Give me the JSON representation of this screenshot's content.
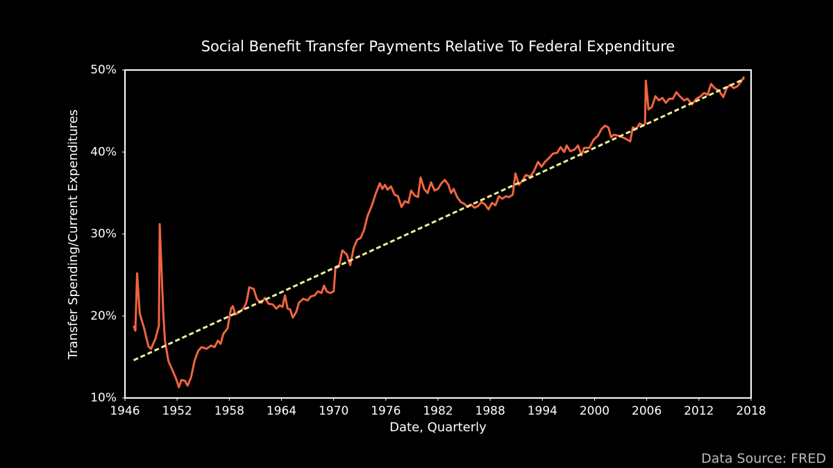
{
  "chart_data": {
    "type": "line",
    "title": "Social Benefit Transfer Payments Relative To Federal Expenditure",
    "x_label": "Date, Quarterly",
    "y_label": "Transfer Spending/Current Expenditures",
    "source": "Data Source: FRED",
    "color": "#f26440",
    "x": [
      1947.0,
      1947.2,
      1947.4,
      1947.7,
      1948.2,
      1948.7,
      1949.0,
      1949.5,
      1949.9,
      1950.0,
      1950.4,
      1950.6,
      1951.0,
      1951.5,
      1951.9,
      1952.2,
      1952.5,
      1952.9,
      1953.2,
      1953.6,
      1954.0,
      1954.4,
      1954.8,
      1955.4,
      1955.9,
      1956.3,
      1956.7,
      1957.0,
      1957.3,
      1957.8,
      1958.2,
      1958.4,
      1958.7,
      1959.2,
      1959.7,
      1960.0,
      1960.3,
      1960.8,
      1961.2,
      1961.7,
      1962.1,
      1962.5,
      1963.0,
      1963.4,
      1963.8,
      1964.1,
      1964.4,
      1964.7,
      1965.0,
      1965.3,
      1965.7,
      1966.0,
      1966.5,
      1967.0,
      1967.4,
      1967.8,
      1968.2,
      1968.6,
      1968.9,
      1969.2,
      1969.6,
      1970.0,
      1970.2,
      1970.6,
      1971.0,
      1971.5,
      1971.9,
      1972.3,
      1972.7,
      1973.1,
      1973.5,
      1973.9,
      1974.4,
      1974.8,
      1975.3,
      1975.6,
      1975.9,
      1976.2,
      1976.6,
      1977.0,
      1977.4,
      1977.8,
      1978.2,
      1978.6,
      1978.9,
      1979.3,
      1979.7,
      1980.0,
      1980.4,
      1980.8,
      1981.2,
      1981.6,
      1982.0,
      1982.4,
      1982.8,
      1983.2,
      1983.5,
      1983.8,
      1984.2,
      1984.6,
      1985.0,
      1985.4,
      1985.8,
      1986.2,
      1986.6,
      1987.0,
      1987.4,
      1987.8,
      1988.2,
      1988.6,
      1989.0,
      1989.4,
      1989.8,
      1990.2,
      1990.6,
      1990.9,
      1991.3,
      1991.7,
      1992.1,
      1992.6,
      1993.0,
      1993.5,
      1993.9,
      1994.3,
      1994.8,
      1995.2,
      1995.7,
      1996.1,
      1996.5,
      1996.8,
      1997.2,
      1997.7,
      1998.1,
      1998.5,
      1998.8,
      1999.4,
      1999.9,
      2000.4,
      2000.8,
      2001.2,
      2001.6,
      2001.9,
      2002.2,
      2002.7,
      2003.2,
      2003.6,
      2004.1,
      2004.4,
      2004.8,
      2005.2,
      2005.6,
      2005.8,
      2005.9,
      2006.2,
      2006.6,
      2007.0,
      2007.4,
      2007.8,
      2008.2,
      2008.6,
      2009.0,
      2009.4,
      2009.8,
      2010.3,
      2010.7,
      2011.2,
      2011.7,
      2012.2,
      2012.6,
      2013.0,
      2013.4,
      2013.8,
      2014.3,
      2014.8,
      2015.2,
      2015.6,
      2016.0,
      2016.4,
      2016.8,
      2017.2
    ],
    "values": [
      18.8,
      18.2,
      25.2,
      20.3,
      18.5,
      16.3,
      16.0,
      17.2,
      18.8,
      31.2,
      20.5,
      17.0,
      14.5,
      13.3,
      12.3,
      11.3,
      12.2,
      12.1,
      11.5,
      12.5,
      14.5,
      15.7,
      16.2,
      16.0,
      16.4,
      16.2,
      17.0,
      16.6,
      17.8,
      18.5,
      20.9,
      21.2,
      20.2,
      20.5,
      21.0,
      21.8,
      23.5,
      23.3,
      22.0,
      21.6,
      22.2,
      21.5,
      21.4,
      20.9,
      21.3,
      21.1,
      22.5,
      20.9,
      20.8,
      19.8,
      20.5,
      21.6,
      22.1,
      21.9,
      22.4,
      22.5,
      23.0,
      22.8,
      23.7,
      23.0,
      22.8,
      23.0,
      25.8,
      26.0,
      28.0,
      27.5,
      26.2,
      28.3,
      29.3,
      29.5,
      30.5,
      32.2,
      33.5,
      34.8,
      36.2,
      35.5,
      36.0,
      35.4,
      35.8,
      34.8,
      34.6,
      33.3,
      34.0,
      33.8,
      35.3,
      34.7,
      34.5,
      36.9,
      35.5,
      35.0,
      36.3,
      35.3,
      35.5,
      36.2,
      36.6,
      36.0,
      35.0,
      35.5,
      34.5,
      33.9,
      33.7,
      33.3,
      33.6,
      33.2,
      33.4,
      33.9,
      33.6,
      33.0,
      33.8,
      33.5,
      34.6,
      34.3,
      34.6,
      34.5,
      34.8,
      37.4,
      36.0,
      36.5,
      37.2,
      37.0,
      37.6,
      38.8,
      38.2,
      38.8,
      39.3,
      39.8,
      39.9,
      40.6,
      40.0,
      40.8,
      40.1,
      40.3,
      40.8,
      39.6,
      40.5,
      40.5,
      41.5,
      42.0,
      42.8,
      43.2,
      43.0,
      41.8,
      42.1,
      42.0,
      41.8,
      41.6,
      41.3,
      43.0,
      42.8,
      43.5,
      43.2,
      43.5,
      48.7,
      45.2,
      45.5,
      46.8,
      46.3,
      46.6,
      46.0,
      46.5,
      46.5,
      47.3,
      46.8,
      46.3,
      46.5,
      45.8,
      46.5,
      46.8,
      47.2,
      47.0,
      48.3,
      47.8,
      47.5,
      46.7,
      47.8,
      48.2,
      47.8,
      48.0,
      48.5,
      49.2
    ],
    "trend": {
      "x": [
        1947.0,
        2017.2
      ],
      "values": [
        14.6,
        48.9
      ],
      "color": "#f4eea0",
      "dashed": true
    },
    "xlim": [
      1946,
      2018
    ],
    "xticks": [
      1946,
      1952,
      1958,
      1964,
      1970,
      1976,
      1982,
      1988,
      1994,
      2000,
      2006,
      2012,
      2018
    ],
    "ylim": [
      10,
      50
    ],
    "yticks": [
      {
        "value": 10,
        "label": "10%"
      },
      {
        "value": 20,
        "label": "20%"
      },
      {
        "value": 30,
        "label": "30%"
      },
      {
        "value": 40,
        "label": "40%"
      },
      {
        "value": 50,
        "label": "50%"
      }
    ],
    "grid": false
  }
}
